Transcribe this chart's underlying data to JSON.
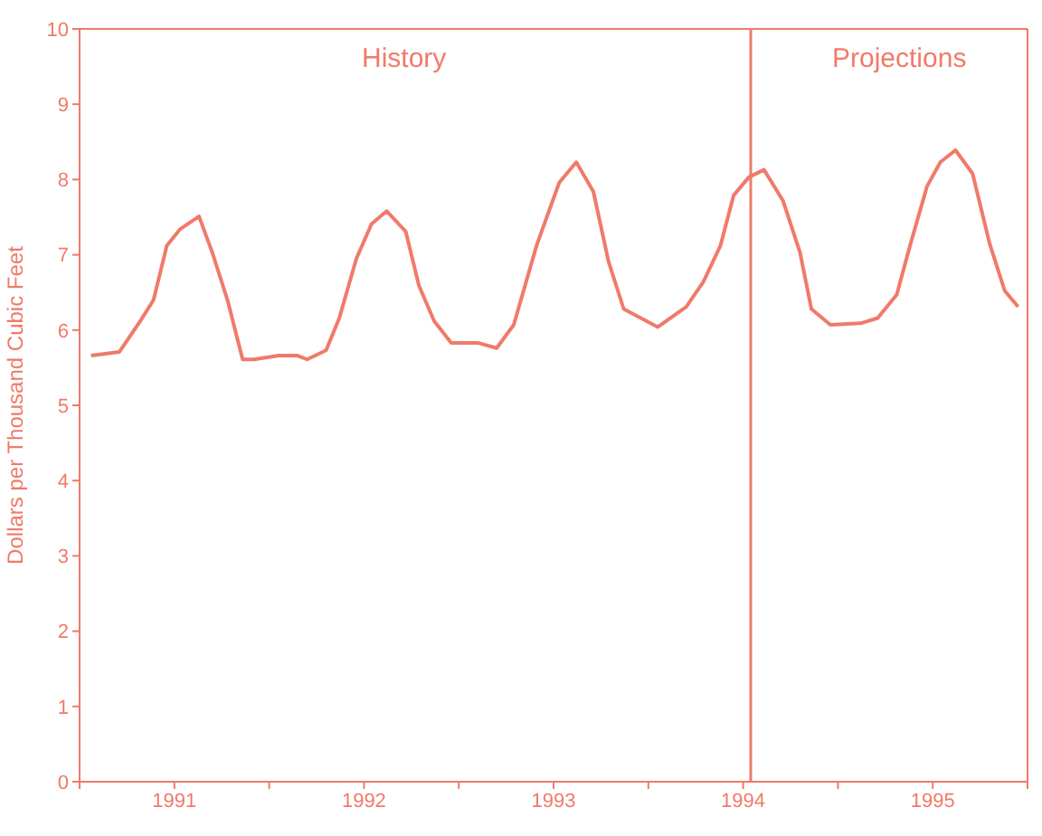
{
  "chart_data": {
    "type": "line",
    "ylabel": "Dollars per Thousand Cubic Feet",
    "x": [
      1991.06,
      1991.21,
      1991.32,
      1991.39,
      1991.46,
      1991.53,
      1991.63,
      1991.7,
      1991.78,
      1991.86,
      1991.92,
      1992.05,
      1992.15,
      1992.2,
      1992.3,
      1992.37,
      1992.46,
      1992.54,
      1992.62,
      1992.72,
      1992.79,
      1992.87,
      1992.96,
      1993.1,
      1993.2,
      1993.29,
      1993.41,
      1993.53,
      1993.62,
      1993.71,
      1993.79,
      1993.87,
      1994.05,
      1994.2,
      1994.29,
      1994.38,
      1994.45,
      1994.53,
      1994.61,
      1994.71,
      1994.8,
      1994.86,
      1994.96,
      1995.12,
      1995.21,
      1995.31,
      1995.38,
      1995.47,
      1995.54,
      1995.62,
      1995.71,
      1995.8,
      1995.88,
      1995.95
    ],
    "series": [
      {
        "color": "#f07a6a",
        "values": [
          5.66,
          5.71,
          6.12,
          6.4,
          7.12,
          7.34,
          7.51,
          7.03,
          6.4,
          5.61,
          5.61,
          5.66,
          5.66,
          5.61,
          5.73,
          6.16,
          6.95,
          7.41,
          7.58,
          7.31,
          6.59,
          6.12,
          5.83,
          5.83,
          5.76,
          6.07,
          7.12,
          7.96,
          8.23,
          7.84,
          6.91,
          6.28,
          6.04,
          6.31,
          6.64,
          7.12,
          7.79,
          8.03,
          8.13,
          7.72,
          7.03,
          6.28,
          6.07,
          6.09,
          6.16,
          6.47,
          7.12,
          7.91,
          8.23,
          8.39,
          8.08,
          7.15,
          6.52,
          6.31
        ]
      }
    ],
    "xlim": [
      1991,
      1996
    ],
    "xticks": [
      {
        "value": 1991,
        "label": null
      },
      {
        "value": 1991.5,
        "label": "1991"
      },
      {
        "value": 1992,
        "label": null
      },
      {
        "value": 1992.5,
        "label": "1992"
      },
      {
        "value": 1993,
        "label": null
      },
      {
        "value": 1993.5,
        "label": "1993"
      },
      {
        "value": 1994,
        "label": null
      },
      {
        "value": 1994.5,
        "label": "1994"
      },
      {
        "value": 1995,
        "label": null
      },
      {
        "value": 1995.5,
        "label": "1995"
      },
      {
        "value": 1996,
        "label": null
      }
    ],
    "ylim": [
      0,
      10
    ],
    "yticks": [
      0,
      1,
      2,
      3,
      4,
      5,
      6,
      7,
      8,
      9,
      10
    ],
    "ref_lines": [
      {
        "axis": "x",
        "value": 1994.54,
        "label": null,
        "color": "#f07a6a"
      }
    ],
    "annotations": [
      "History",
      "Projections"
    ],
    "grid": false,
    "marker": "none",
    "line_style": "solid"
  }
}
